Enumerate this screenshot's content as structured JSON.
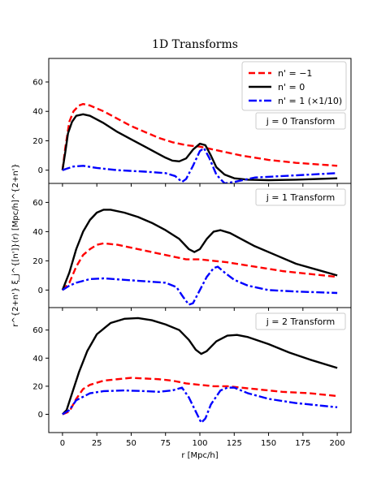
{
  "chart_data": {
    "type": "line",
    "title": "1D Transforms",
    "xlabel": "r [Mpc/h]",
    "ylabel": "r^{2+n'} ξ_j^{[n']}(r) [Mpc/h]^{2+n'}",
    "xlim": [
      -10,
      210
    ],
    "xticks": [
      0,
      25,
      50,
      75,
      100,
      125,
      150,
      175,
      200
    ],
    "grid": false,
    "legend_position": "top-right of top panel",
    "series_styles": [
      {
        "name": "n' = −1",
        "color": "#ff0000",
        "dash": "dashed"
      },
      {
        "name": "n' = 0",
        "color": "#000000",
        "dash": "solid"
      },
      {
        "name": "n' = 1 (×1/10)",
        "color": "#0000ff",
        "dash": "dashdot"
      }
    ],
    "panels": [
      {
        "label": "j = 0  Transform",
        "ylim": [
          -9,
          76
        ],
        "yticks": [
          0,
          20,
          40,
          60
        ],
        "series": [
          {
            "name": "n' = −1",
            "points": [
              [
                0,
                0
              ],
              [
                2,
                15
              ],
              [
                5,
                33
              ],
              [
                8,
                40
              ],
              [
                12,
                44
              ],
              [
                15,
                45
              ],
              [
                20,
                44
              ],
              [
                30,
                40
              ],
              [
                40,
                35
              ],
              [
                50,
                30
              ],
              [
                60,
                26
              ],
              [
                70,
                22
              ],
              [
                80,
                19
              ],
              [
                90,
                17
              ],
              [
                100,
                16
              ],
              [
                110,
                14
              ],
              [
                120,
                12
              ],
              [
                130,
                10
              ],
              [
                150,
                7
              ],
              [
                170,
                5
              ],
              [
                200,
                3
              ]
            ]
          },
          {
            "name": "n' = 0",
            "points": [
              [
                0,
                0
              ],
              [
                2,
                12
              ],
              [
                4,
                25
              ],
              [
                7,
                33
              ],
              [
                10,
                37
              ],
              [
                15,
                38
              ],
              [
                20,
                37
              ],
              [
                30,
                32
              ],
              [
                40,
                26
              ],
              [
                50,
                21
              ],
              [
                60,
                16
              ],
              [
                70,
                11
              ],
              [
                75,
                8.5
              ],
              [
                80,
                6.5
              ],
              [
                85,
                6
              ],
              [
                90,
                8
              ],
              [
                95,
                14
              ],
              [
                100,
                18
              ],
              [
                104,
                17
              ],
              [
                108,
                10
              ],
              [
                112,
                2
              ],
              [
                118,
                -3
              ],
              [
                125,
                -5.5
              ],
              [
                135,
                -6.5
              ],
              [
                150,
                -6.8
              ],
              [
                170,
                -6.5
              ],
              [
                200,
                -5.5
              ]
            ]
          },
          {
            "name": "n' = 1 (×1/10)",
            "points": [
              [
                0,
                0
              ],
              [
                3,
                1
              ],
              [
                8,
                2.5
              ],
              [
                15,
                3
              ],
              [
                25,
                1.5
              ],
              [
                40,
                0
              ],
              [
                60,
                -1
              ],
              [
                75,
                -2
              ],
              [
                82,
                -4
              ],
              [
                87,
                -8
              ],
              [
                90,
                -6
              ],
              [
                95,
                3
              ],
              [
                100,
                13
              ],
              [
                103,
                15
              ],
              [
                107,
                8
              ],
              [
                112,
                -3
              ],
              [
                118,
                -9
              ],
              [
                125,
                -8
              ],
              [
                140,
                -5
              ],
              [
                160,
                -4
              ],
              [
                180,
                -3
              ],
              [
                200,
                -2
              ]
            ]
          }
        ]
      },
      {
        "label": "j = 1  Transform",
        "ylim": [
          -12,
          73
        ],
        "yticks": [
          0,
          20,
          40,
          60
        ],
        "series": [
          {
            "name": "n' = −1",
            "points": [
              [
                0,
                0
              ],
              [
                5,
                5
              ],
              [
                10,
                16
              ],
              [
                15,
                24
              ],
              [
                20,
                28
              ],
              [
                25,
                31
              ],
              [
                30,
                32
              ],
              [
                40,
                31
              ],
              [
                50,
                29
              ],
              [
                60,
                27
              ],
              [
                70,
                25
              ],
              [
                80,
                23
              ],
              [
                90,
                21
              ],
              [
                100,
                21
              ],
              [
                110,
                20
              ],
              [
                120,
                19
              ],
              [
                140,
                16
              ],
              [
                160,
                13
              ],
              [
                180,
                11
              ],
              [
                200,
                9
              ]
            ]
          },
          {
            "name": "n' = 0",
            "points": [
              [
                0,
                0
              ],
              [
                5,
                12
              ],
              [
                10,
                28
              ],
              [
                15,
                40
              ],
              [
                20,
                48
              ],
              [
                25,
                53
              ],
              [
                30,
                55
              ],
              [
                35,
                55
              ],
              [
                45,
                53
              ],
              [
                55,
                50
              ],
              [
                65,
                46
              ],
              [
                75,
                41
              ],
              [
                85,
                35
              ],
              [
                92,
                28
              ],
              [
                96,
                26
              ],
              [
                100,
                28
              ],
              [
                105,
                35
              ],
              [
                110,
                40
              ],
              [
                115,
                41
              ],
              [
                122,
                39
              ],
              [
                130,
                35
              ],
              [
                140,
                30
              ],
              [
                155,
                24
              ],
              [
                170,
                18
              ],
              [
                185,
                14
              ],
              [
                200,
                10
              ]
            ]
          },
          {
            "name": "n' = 1 (×1/10)",
            "points": [
              [
                0,
                0
              ],
              [
                5,
                3
              ],
              [
                10,
                5
              ],
              [
                20,
                7.5
              ],
              [
                30,
                8
              ],
              [
                45,
                7
              ],
              [
                60,
                6
              ],
              [
                75,
                5
              ],
              [
                83,
                2
              ],
              [
                88,
                -5
              ],
              [
                92,
                -10
              ],
              [
                95,
                -9
              ],
              [
                100,
                0
              ],
              [
                105,
                9
              ],
              [
                110,
                15
              ],
              [
                113,
                16
              ],
              [
                118,
                12
              ],
              [
                125,
                7
              ],
              [
                135,
                3
              ],
              [
                150,
                0
              ],
              [
                170,
                -1
              ],
              [
                200,
                -2
              ]
            ]
          }
        ]
      },
      {
        "label": "j = 2  Transform",
        "ylim": [
          -13,
          76
        ],
        "yticks": [
          0,
          20,
          40,
          60
        ],
        "series": [
          {
            "name": "n' = −1",
            "points": [
              [
                0,
                0
              ],
              [
                5,
                2
              ],
              [
                10,
                11
              ],
              [
                15,
                18
              ],
              [
                20,
                21
              ],
              [
                30,
                24
              ],
              [
                40,
                25
              ],
              [
                50,
                26
              ],
              [
                60,
                25.5
              ],
              [
                70,
                25
              ],
              [
                80,
                24
              ],
              [
                90,
                22
              ],
              [
                100,
                21
              ],
              [
                110,
                20
              ],
              [
                120,
                20
              ],
              [
                130,
                19
              ],
              [
                140,
                18
              ],
              [
                160,
                16
              ],
              [
                180,
                15
              ],
              [
                200,
                13
              ]
            ]
          },
          {
            "name": "n' = 0",
            "points": [
              [
                0,
                0
              ],
              [
                3,
                3
              ],
              [
                7,
                15
              ],
              [
                12,
                30
              ],
              [
                18,
                45
              ],
              [
                25,
                57
              ],
              [
                35,
                65
              ],
              [
                45,
                68
              ],
              [
                55,
                68.5
              ],
              [
                65,
                67
              ],
              [
                75,
                64
              ],
              [
                85,
                60
              ],
              [
                92,
                53
              ],
              [
                97,
                46
              ],
              [
                101,
                43
              ],
              [
                105,
                45
              ],
              [
                112,
                52
              ],
              [
                120,
                56
              ],
              [
                127,
                56.5
              ],
              [
                135,
                55
              ],
              [
                150,
                50
              ],
              [
                165,
                44
              ],
              [
                180,
                39
              ],
              [
                200,
                33
              ]
            ]
          },
          {
            "name": "n' = 1 (×1/10)",
            "points": [
              [
                0,
                0
              ],
              [
                5,
                3
              ],
              [
                10,
                10
              ],
              [
                20,
                15
              ],
              [
                30,
                16.5
              ],
              [
                45,
                17
              ],
              [
                60,
                16.5
              ],
              [
                70,
                16
              ],
              [
                80,
                17
              ],
              [
                87,
                19
              ],
              [
                92,
                12
              ],
              [
                97,
                2
              ],
              [
                101,
                -6
              ],
              [
                104,
                -3
              ],
              [
                108,
                7
              ],
              [
                115,
                17
              ],
              [
                120,
                19
              ],
              [
                125,
                19
              ],
              [
                135,
                15
              ],
              [
                150,
                11
              ],
              [
                170,
                8
              ],
              [
                190,
                6
              ],
              [
                200,
                5
              ]
            ]
          }
        ]
      }
    ]
  }
}
